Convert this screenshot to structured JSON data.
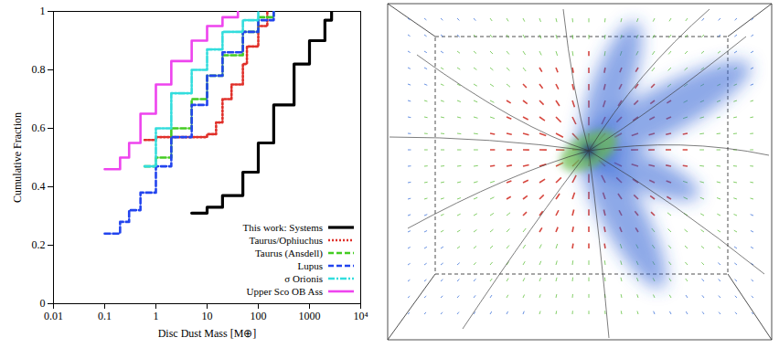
{
  "chart_data": {
    "type": "line",
    "x_label": "Disc Dust Mass [M⊕]",
    "y_label": "Cumulative Fraction",
    "log": "x",
    "xlim": [
      0.01,
      10000
    ],
    "xticks": [
      0.01,
      0.1,
      1,
      10,
      100,
      1000,
      {
        "value": 10000,
        "label": "10⁴"
      }
    ],
    "ylim": [
      0,
      1
    ],
    "yticks": [
      0,
      0.2,
      0.4,
      0.6,
      0.8,
      1
    ],
    "legend": "bottom-right",
    "series": [
      {
        "name": "This work: Systems",
        "color": "#000000",
        "line_style": "solid",
        "x": [
          5,
          10,
          20,
          50,
          100,
          200,
          500,
          1000,
          2000,
          2700
        ],
        "values": [
          0.31,
          0.33,
          0.37,
          0.45,
          0.55,
          0.68,
          0.82,
          0.9,
          0.97,
          1.0
        ]
      },
      {
        "name": "Taurus/Ophiuchus",
        "color": "#e0302a",
        "line_style": "dotted",
        "x": [
          0.6,
          1,
          10,
          15,
          20,
          30,
          50,
          60,
          100,
          150
        ],
        "values": [
          0.56,
          0.57,
          0.58,
          0.62,
          0.7,
          0.75,
          0.82,
          0.88,
          0.95,
          1.0
        ]
      },
      {
        "name": "Taurus (Ansdell)",
        "color": "#44cc22",
        "line_style": "dashed",
        "x": [
          0.6,
          1,
          2,
          5,
          10,
          20,
          50,
          100,
          200
        ],
        "values": [
          0.47,
          0.5,
          0.6,
          0.7,
          0.78,
          0.85,
          0.93,
          0.98,
          1.0
        ]
      },
      {
        "name": "Lupus",
        "color": "#2244ee",
        "line_style": "dashed",
        "x": [
          0.1,
          0.2,
          0.3,
          0.5,
          1,
          2,
          5,
          10,
          20,
          50,
          100,
          200
        ],
        "values": [
          0.24,
          0.28,
          0.32,
          0.38,
          0.47,
          0.57,
          0.68,
          0.78,
          0.86,
          0.93,
          0.97,
          1.0
        ]
      },
      {
        "name": "σ Orionis",
        "color": "#33dddd",
        "line_style": "dashdot",
        "x": [
          0.6,
          1,
          2,
          5,
          10,
          20,
          50,
          100
        ],
        "values": [
          0.47,
          0.6,
          0.72,
          0.8,
          0.87,
          0.93,
          0.97,
          1.0
        ]
      },
      {
        "name": "Upper Sco OB Ass",
        "color": "#ee44ee",
        "line_style": "solid",
        "x": [
          0.1,
          0.2,
          0.3,
          0.5,
          1,
          2,
          5,
          10,
          20,
          40
        ],
        "values": [
          0.46,
          0.5,
          0.55,
          0.65,
          0.75,
          0.83,
          0.9,
          0.95,
          0.98,
          1.0
        ]
      }
    ]
  }
}
